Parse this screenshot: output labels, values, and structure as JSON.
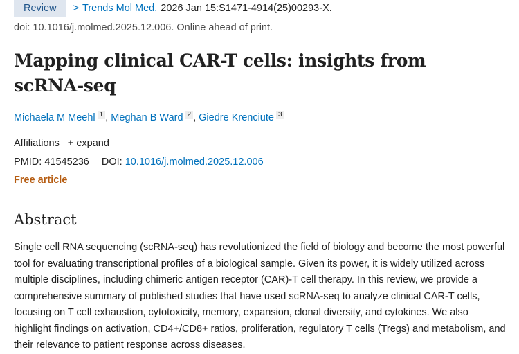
{
  "header": {
    "badge": "Review",
    "journal_chevron": ">",
    "journal": "Trends Mol Med.",
    "citation": "2026 Jan 15:S1471-4914(25)00293-X.",
    "doi_line": "doi: 10.1016/j.molmed.2025.12.006. Online ahead of print."
  },
  "article": {
    "title": "Mapping clinical CAR-T cells: insights from scRNA-seq",
    "authors": [
      {
        "name": "Michaela M Meehl",
        "affil": "1"
      },
      {
        "name": "Meghan B Ward",
        "affil": "2"
      },
      {
        "name": "Giedre Krenciute",
        "affil": "3"
      }
    ],
    "separator": ",",
    "affiliations_label": "Affiliations",
    "expand_icon": "+",
    "expand_label": "expand",
    "pmid_label": "PMID:",
    "pmid": "41545236",
    "doi_label": "DOI:",
    "doi": "10.1016/j.molmed.2025.12.006",
    "free_label": "Free article"
  },
  "abstract": {
    "heading": "Abstract",
    "text": "Single cell RNA sequencing (scRNA-seq) has revolutionized the field of biology and become the most powerful tool for evaluating transcriptional profiles of a biological sample. Given its power, it is widely utilized across multiple disciplines, including chimeric antigen receptor (CAR)-T cell therapy. In this review, we provide a comprehensive summary of published studies that have used scRNA-seq to analyze clinical CAR-T cells, focusing on T cell exhaustion, cytotoxicity, memory, expansion, clonal diversity, and cytokines. We also highlight findings on activation, CD4+/CD8+ ratios, proliferation, regulatory T cells (Tregs) and metabolism, and their relevance to patient response across diseases."
  },
  "colors": {
    "link": "#0071bc",
    "badge_bg": "#dfe6ef",
    "free_article": "#b65d12"
  }
}
